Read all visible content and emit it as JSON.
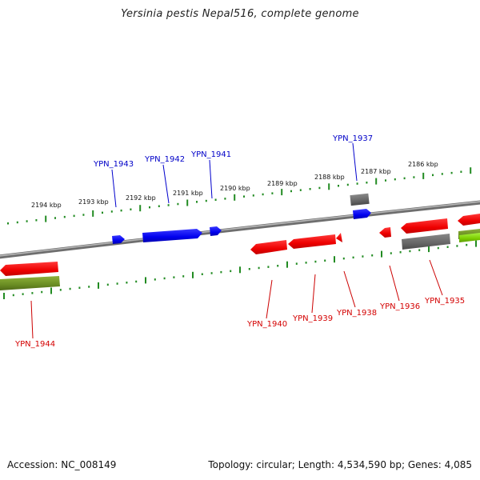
{
  "title": "Yersinia pestis Nepal516, complete genome",
  "accession": "Accession: NC_008149",
  "summary": "Topology: circular; Length: 4,534,590 bp; Genes: 4,085",
  "kbp_labels": [
    "2194 kbp",
    "2193 kbp",
    "2192 kbp",
    "2191 kbp",
    "2190 kbp",
    "2189 kbp",
    "2188 kbp",
    "2187 kbp",
    "2186 kbp"
  ],
  "forward_genes": [
    "YPN_1943",
    "YPN_1942",
    "YPN_1941",
    "YPN_1937"
  ],
  "reverse_genes": [
    "YPN_1944",
    "YPN_1940",
    "YPN_1939",
    "YPN_1938",
    "YPN_1936",
    "YPN_1935"
  ],
  "colors": {
    "forward_gene": "#0000ee",
    "reverse_gene": "#ee0000",
    "other_feature": "#666666",
    "olive_feature": "#6b8e23",
    "green_feature": "#7ccd00",
    "tick": "#228b22",
    "backbone": "#808080"
  }
}
